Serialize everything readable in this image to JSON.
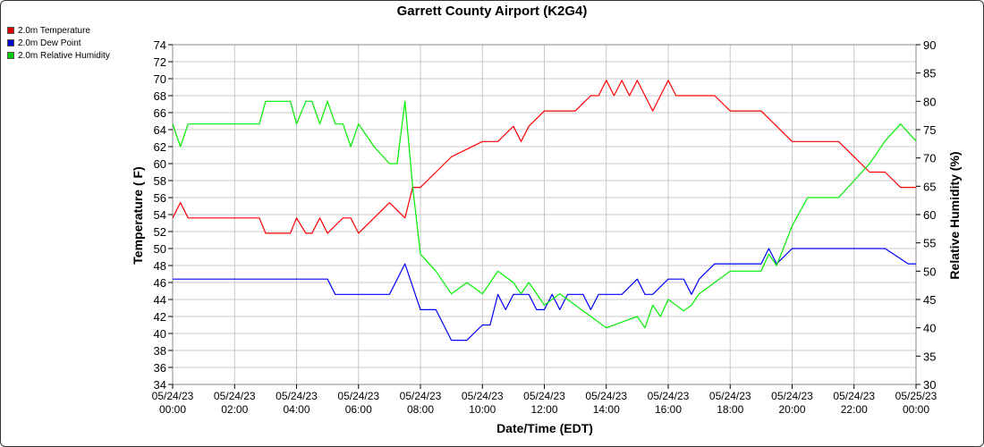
{
  "chart_data": {
    "type": "line",
    "title": "Garrett County Airport (K2G4)",
    "xlabel": "Date/Time (EDT)",
    "ylabel": "Temperature ( F)",
    "y2label": "Relative Humidity (%)",
    "ylim": [
      34,
      74
    ],
    "y2lim": [
      30,
      90
    ],
    "y_ticks": [
      "74",
      "72",
      "70",
      "68",
      "66",
      "64",
      "62",
      "60",
      "58",
      "56",
      "54",
      "52",
      "50",
      "48",
      "46",
      "44",
      "42",
      "40",
      "38",
      "36",
      "34"
    ],
    "y2_ticks": [
      "90",
      "85",
      "80",
      "75",
      "70",
      "65",
      "60",
      "55",
      "50",
      "45",
      "40",
      "35",
      "30"
    ],
    "x_ticks": [
      {
        "date": "05/24/23",
        "time": "00:00"
      },
      {
        "date": "05/24/23",
        "time": "02:00"
      },
      {
        "date": "05/24/23",
        "time": "04:00"
      },
      {
        "date": "05/24/23",
        "time": "06:00"
      },
      {
        "date": "05/24/23",
        "time": "08:00"
      },
      {
        "date": "05/24/23",
        "time": "10:00"
      },
      {
        "date": "05/24/23",
        "time": "12:00"
      },
      {
        "date": "05/24/23",
        "time": "14:00"
      },
      {
        "date": "05/24/23",
        "time": "16:00"
      },
      {
        "date": "05/24/23",
        "time": "18:00"
      },
      {
        "date": "05/24/23",
        "time": "20:00"
      },
      {
        "date": "05/24/23",
        "time": "22:00"
      },
      {
        "date": "05/25/23",
        "time": "00:00"
      }
    ],
    "grid": true,
    "legend_position": "top-left",
    "series": [
      {
        "name": "2.0m Temperature",
        "color": "#ff0000",
        "axis": "left",
        "x_hours": [
          0,
          0.25,
          0.5,
          1,
          2,
          2.8,
          3,
          3.5,
          3.8,
          4,
          4.3,
          4.5,
          4.75,
          5,
          5.5,
          5.75,
          6,
          6.5,
          7,
          7.5,
          7.75,
          8,
          8.5,
          9,
          10,
          10.5,
          11,
          11.25,
          11.5,
          12,
          12.5,
          13,
          13.5,
          13.75,
          14,
          14.25,
          14.5,
          14.75,
          15,
          15.25,
          15.5,
          15.75,
          16,
          16.25,
          16.5,
          16.75,
          17,
          17.5,
          18,
          18.5,
          19,
          19.5,
          20,
          20.5,
          21,
          21.5,
          22,
          22.5,
          23,
          23.5,
          24
        ],
        "values": [
          53.6,
          55.4,
          53.6,
          53.6,
          53.6,
          53.6,
          51.8,
          51.8,
          51.8,
          53.6,
          51.8,
          51.8,
          53.6,
          51.8,
          53.6,
          53.6,
          51.8,
          53.6,
          55.4,
          53.6,
          57.2,
          57.2,
          59,
          60.8,
          62.6,
          62.6,
          64.4,
          62.6,
          64.4,
          66.2,
          66.2,
          66.2,
          68,
          68,
          69.8,
          68,
          69.8,
          68,
          69.8,
          68,
          66.2,
          68,
          69.8,
          68,
          68,
          68,
          68,
          68,
          66.2,
          66.2,
          66.2,
          64.4,
          62.6,
          62.6,
          62.6,
          62.6,
          60.8,
          59,
          59,
          57.2,
          57.2
        ]
      },
      {
        "name": "2.0m Dew Point",
        "color": "#0000ff",
        "axis": "left",
        "x_hours": [
          0,
          1,
          2,
          3,
          4,
          5,
          5.25,
          5.5,
          6,
          7,
          7.5,
          8,
          8.5,
          9,
          9.5,
          10,
          10.25,
          10.5,
          10.75,
          11,
          11.5,
          11.75,
          12,
          12.25,
          12.5,
          12.75,
          13,
          13.25,
          13.5,
          13.75,
          14,
          14.5,
          15,
          15.25,
          15.5,
          16,
          16.25,
          16.5,
          16.75,
          17,
          17.5,
          18,
          18.5,
          19,
          19.25,
          19.5,
          20,
          20.5,
          21,
          22,
          23,
          23.75,
          24
        ],
        "values": [
          46.4,
          46.4,
          46.4,
          46.4,
          46.4,
          46.4,
          44.6,
          44.6,
          44.6,
          44.6,
          48.2,
          42.8,
          42.8,
          39.2,
          39.2,
          41,
          41,
          44.6,
          42.8,
          44.6,
          44.6,
          42.8,
          42.8,
          44.6,
          42.8,
          44.6,
          44.6,
          44.6,
          42.8,
          44.6,
          44.6,
          44.6,
          46.4,
          44.6,
          44.6,
          46.4,
          46.4,
          46.4,
          44.6,
          46.4,
          48.2,
          48.2,
          48.2,
          48.2,
          50,
          48.2,
          50,
          50,
          50,
          50,
          50,
          48.2,
          48.2
        ]
      },
      {
        "name": "2.0m Relative Humidity",
        "color": "#00ee00",
        "axis": "right",
        "x_hours": [
          0,
          0.25,
          0.5,
          1,
          2,
          2.8,
          3,
          3.5,
          3.8,
          4,
          4.3,
          4.5,
          4.75,
          5,
          5.25,
          5.5,
          5.75,
          6,
          6.5,
          7,
          7.25,
          7.5,
          7.75,
          8,
          8.5,
          9,
          9.5,
          10,
          10.5,
          11,
          11.25,
          11.5,
          12,
          12.5,
          13,
          13.5,
          14,
          14.5,
          15,
          15.25,
          15.5,
          15.75,
          16,
          16.25,
          16.5,
          16.75,
          17,
          17.5,
          18,
          18.5,
          19,
          19.25,
          19.5,
          20,
          20.5,
          21,
          21.5,
          22,
          22.5,
          23,
          23.5,
          24
        ],
        "values": [
          76,
          72,
          76,
          76,
          76,
          76,
          80,
          80,
          80,
          76,
          80,
          80,
          76,
          80,
          76,
          76,
          72,
          76,
          72,
          69,
          69,
          80,
          65,
          53,
          50,
          46,
          48,
          46,
          50,
          48,
          46,
          48,
          44,
          46,
          44,
          42,
          40,
          41,
          42,
          40,
          44,
          42,
          45,
          44,
          43,
          44,
          46,
          48,
          50,
          50,
          50,
          53,
          51,
          58,
          63,
          63,
          63,
          66,
          69,
          73,
          76,
          73
        ]
      }
    ]
  }
}
